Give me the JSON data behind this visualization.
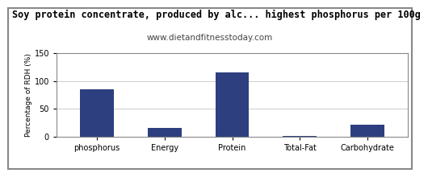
{
  "title": "Soy protein concentrate, produced by alc... highest phosphorus per 100g",
  "subtitle": "www.dietandfitnesstoday.com",
  "categories": [
    "phosphorus",
    "Energy",
    "Protein",
    "Total-Fat",
    "Carbohydrate"
  ],
  "values": [
    85,
    16,
    116,
    1.5,
    22
  ],
  "bar_color": "#2d3f7f",
  "ylabel": "Percentage of RDH (%)",
  "ylim": [
    0,
    150
  ],
  "yticks": [
    0,
    50,
    100,
    150
  ],
  "background_color": "#ffffff",
  "title_fontsize": 8.5,
  "subtitle_fontsize": 7.5,
  "ylabel_fontsize": 6.5,
  "xlabel_fontsize": 7.0,
  "tick_fontsize": 7.0,
  "grid_color": "#cccccc",
  "border_color": "#888888"
}
